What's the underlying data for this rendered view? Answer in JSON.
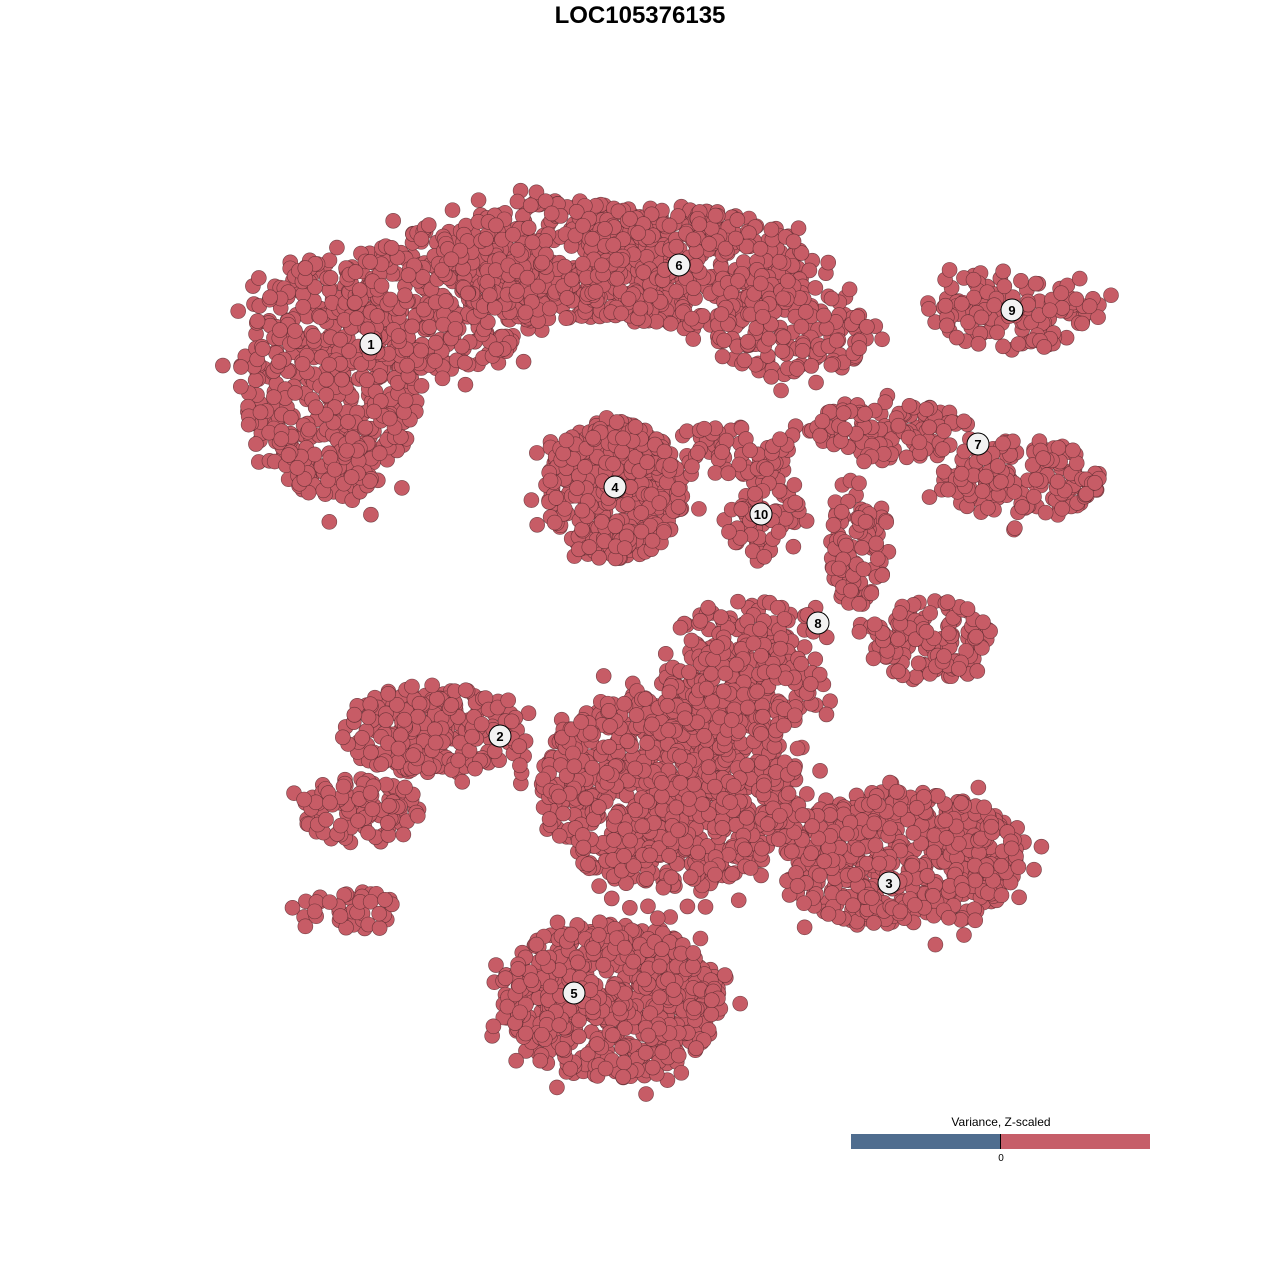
{
  "chart_data": {
    "type": "scatter",
    "title": "LOC105376135",
    "xlabel": "",
    "ylabel": "",
    "axes_visible": false,
    "grid": false,
    "point_color": "#c75c66",
    "point_stroke": "#5a2a30",
    "legend": {
      "title": "Variance, Z-scaled",
      "position": "bottom-right",
      "tick_label": "0",
      "low_color": "#4f6d8f",
      "high_color": "#c65e69"
    },
    "clusters": [
      {
        "label": "1",
        "label_pos": [
          -26.9,
          29.6
        ],
        "blobs": [
          {
            "c": [
              -31,
              26
            ],
            "r": [
              9,
              12
            ],
            "n": 520
          },
          {
            "c": [
              -20,
              34
            ],
            "r": [
              10,
              7
            ],
            "n": 320
          },
          {
            "c": [
              -8,
              38
            ],
            "r": [
              12,
              6
            ],
            "n": 420
          }
        ]
      },
      {
        "label": "2",
        "label_pos": [
          -14.0,
          -9.6
        ],
        "blobs": [
          {
            "c": [
              -21,
              -9
            ],
            "r": [
              9,
              4.5
            ],
            "n": 240
          },
          {
            "c": [
              -28,
              -17
            ],
            "r": [
              6,
              3.5
            ],
            "n": 110
          },
          {
            "c": [
              -29,
              -27
            ],
            "r": [
              5,
              2
            ],
            "n": 40
          }
        ]
      },
      {
        "label": "3",
        "label_pos": [
          24.9,
          -24.3
        ],
        "blobs": [
          {
            "c": [
              26,
              -22
            ],
            "r": [
              12,
              7
            ],
            "n": 520
          }
        ]
      },
      {
        "label": "4",
        "label_pos": [
          -2.5,
          15.3
        ],
        "blobs": [
          {
            "c": [
              -2.5,
              15
            ],
            "r": [
              7,
              7
            ],
            "n": 420
          }
        ]
      },
      {
        "label": "5",
        "label_pos": [
          -6.6,
          -35.3
        ],
        "blobs": [
          {
            "c": [
              -3,
              -36
            ],
            "r": [
              11,
              8
            ],
            "n": 620
          }
        ]
      },
      {
        "label": "6",
        "label_pos": [
          3.9,
          37.5
        ],
        "blobs": [
          {
            "c": [
              5,
              37
            ],
            "r": [
              12,
              6
            ],
            "n": 420
          },
          {
            "c": [
              15,
              31
            ],
            "r": [
              8,
              5
            ],
            "n": 160
          }
        ]
      },
      {
        "label": "7",
        "label_pos": [
          33.8,
          19.6
        ],
        "blobs": [
          {
            "c": [
              25,
              21
            ],
            "r": [
              8,
              3
            ],
            "n": 130
          },
          {
            "c": [
              38,
              16
            ],
            "r": [
              8,
              4
            ],
            "n": 160
          }
        ]
      },
      {
        "label": "8",
        "label_pos": [
          17.8,
          1.7
        ],
        "blobs": [
          {
            "c": [
              22,
              9
            ],
            "r": [
              3,
              6
            ],
            "n": 90
          },
          {
            "c": [
              29,
              0
            ],
            "r": [
              6,
              4
            ],
            "n": 130
          },
          {
            "c": [
              11,
              1
            ],
            "r": [
              7,
              3
            ],
            "n": 80
          }
        ]
      },
      {
        "label": "9",
        "label_pos": [
          37.2,
          33.0
        ],
        "blobs": [
          {
            "c": [
              37,
              33
            ],
            "r": [
              9,
              4
            ],
            "n": 130
          }
        ]
      },
      {
        "label": "10",
        "label_pos": [
          12.1,
          12.6
        ],
        "blobs": [
          {
            "c": [
              12,
              13
            ],
            "r": [
              4,
              5
            ],
            "n": 80
          },
          {
            "c": [
              9,
              19
            ],
            "r": [
              6,
              2.5
            ],
            "n": 60
          }
        ]
      },
      {
        "label": "",
        "label_pos": null,
        "blobs": [
          {
            "c": [
              3,
              -15
            ],
            "r": [
              13,
              10
            ],
            "n": 900
          },
          {
            "c": [
              10,
              -5
            ],
            "r": [
              8,
              5
            ],
            "n": 220
          }
        ]
      }
    ]
  }
}
